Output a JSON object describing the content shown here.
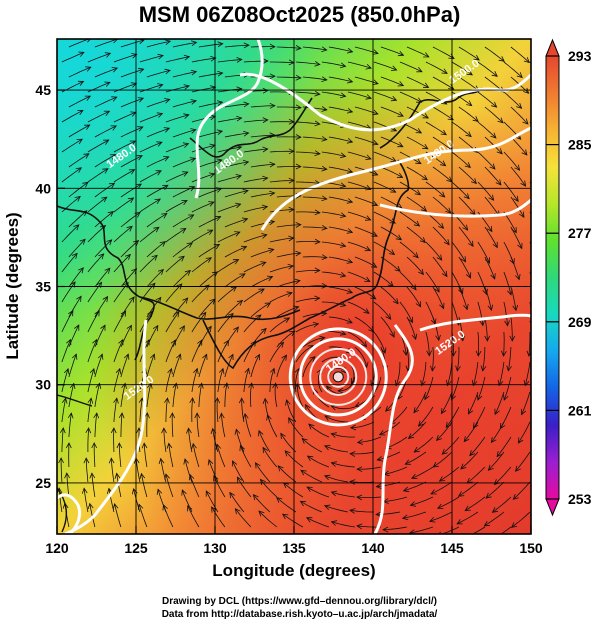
{
  "title": "MSM 06Z08Oct2025 (850.0hPa)",
  "xaxis": {
    "label": "Longitude (degrees)",
    "range": [
      120,
      150
    ],
    "ticks": [
      "120",
      "125",
      "130",
      "135",
      "140",
      "145",
      "150"
    ],
    "tick_values": [
      120,
      125,
      130,
      135,
      140,
      145,
      150
    ]
  },
  "yaxis": {
    "label": "Latitude  (degrees)",
    "range": [
      22.4,
      47.6
    ],
    "ticks": [
      "25",
      "30",
      "35",
      "40",
      "45"
    ],
    "tick_values": [
      25,
      30,
      35,
      40,
      45
    ]
  },
  "colorbar": {
    "min": 253,
    "max": 293,
    "labels": [
      "293",
      "285",
      "277",
      "269",
      "261",
      "253"
    ],
    "label_values": [
      293,
      285,
      277,
      269,
      261,
      253
    ],
    "colors": [
      "#e60aa0",
      "#9b1fd0",
      "#3a1fc8",
      "#1463e6",
      "#15a8f0",
      "#18d9c0",
      "#2fd97a",
      "#5fe02f",
      "#b6e62a",
      "#f5e23a",
      "#f7b233",
      "#f07a30",
      "#e5472f"
    ]
  },
  "grid": true,
  "contours": [
    {
      "label": "1500.0",
      "lon": 145.9,
      "lat": 45.8
    },
    {
      "label": "1480.0",
      "lon": 131.0,
      "lat": 41.2
    },
    {
      "label": "1480.0",
      "lon": 138.1,
      "lat": 31.1
    },
    {
      "label": "1480.0",
      "lon": 144.3,
      "lat": 41.7
    },
    {
      "label": "1480.0",
      "lon": 124.2,
      "lat": 41.5
    },
    {
      "label": "1520.0",
      "lon": 145.0,
      "lat": 32.0
    },
    {
      "label": "1520.0",
      "lon": 125.3,
      "lat": 29.7
    }
  ],
  "typhoon_center": {
    "lon": 137.8,
    "lat": 30.4
  },
  "credits": [
    "Drawing by DCL (https://www.gfd–dennou.org/library/dcl/)",
    "Data from http://database.rish.kyoto–u.ac.jp/arch/jmadata/"
  ]
}
